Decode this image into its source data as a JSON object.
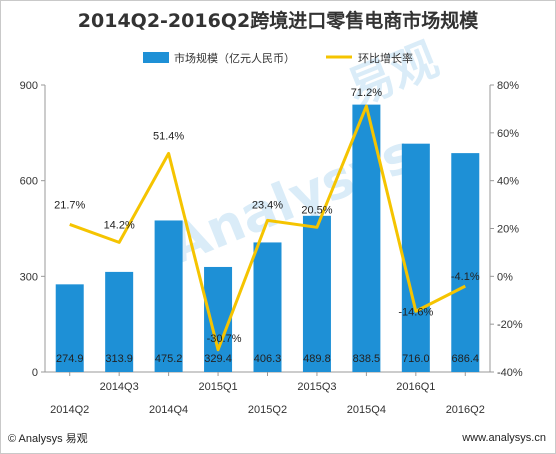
{
  "chart_data": {
    "type": "bar+line",
    "title": "2014Q2-2016Q2跨境进口零售电商市场规模",
    "categories": [
      "2014Q2",
      "2014Q3",
      "2014Q4",
      "2015Q1",
      "2015Q2",
      "2015Q3",
      "2015Q4",
      "2016Q1",
      "2016Q2"
    ],
    "series": [
      {
        "name": "市场规模（亿元人民币）",
        "kind": "bar",
        "axis": "left",
        "color": "#1e90d6",
        "values": [
          274.9,
          313.9,
          475.2,
          329.4,
          406.3,
          489.8,
          838.5,
          716.0,
          686.4
        ],
        "labels": [
          "274.9",
          "313.9",
          "475.2",
          "329.4",
          "406.3",
          "489.8",
          "838.5",
          "716.0",
          "686.4"
        ]
      },
      {
        "name": "环比增长率",
        "kind": "line",
        "axis": "right",
        "color": "#f5c400",
        "values": [
          21.7,
          14.2,
          51.4,
          -30.7,
          23.4,
          20.5,
          71.2,
          -14.6,
          -4.1
        ],
        "labels": [
          "21.7%",
          "14.2%",
          "51.4%",
          "-30.7%",
          "23.4%",
          "20.5%",
          "71.2%",
          "-14.6%",
          "-4.1%"
        ]
      }
    ],
    "y_left": {
      "range": [
        0,
        900
      ],
      "ticks": [
        0,
        300,
        600,
        900
      ],
      "tick_labels": [
        "0",
        "300",
        "600",
        "900"
      ]
    },
    "y_right": {
      "range": [
        -40,
        80
      ],
      "ticks": [
        -40,
        -20,
        0,
        20,
        40,
        60,
        80
      ],
      "tick_labels": [
        "-40%",
        "-20%",
        "0%",
        "20%",
        "40%",
        "60%",
        "80%"
      ]
    },
    "grid": false,
    "legend_position": "top-center"
  },
  "watermark": {
    "text_en": "Analysys",
    "text_cn": "易观"
  },
  "footer": {
    "left": "© Analysys 易观",
    "right": "www.analysys.cn"
  }
}
